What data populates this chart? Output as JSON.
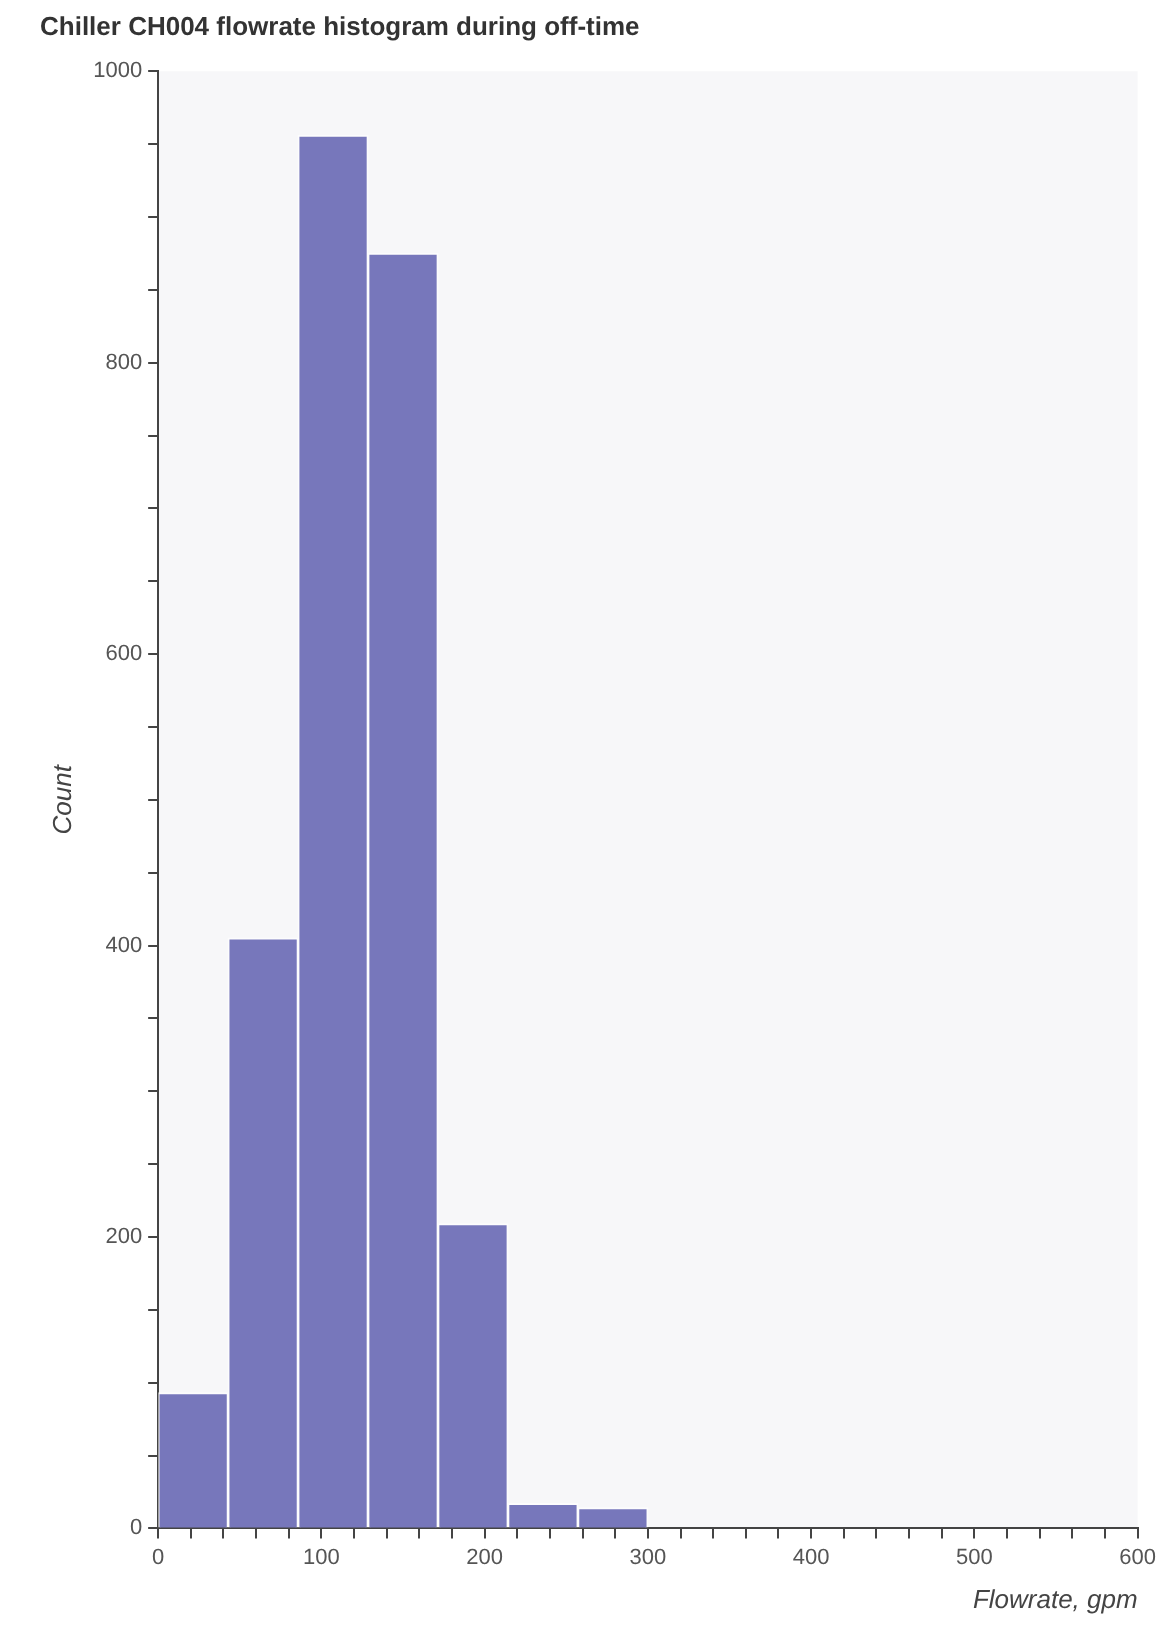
{
  "chart_data": {
    "type": "histogram",
    "title": "Chiller CH004 flowrate histogram during off-time",
    "xlabel": "Flowrate, gpm",
    "ylabel": "Count",
    "bins": [
      0,
      42.86,
      85.71,
      128.57,
      171.43,
      214.29,
      257.14,
      300
    ],
    "values": [
      93,
      405,
      956,
      875,
      209,
      17,
      14
    ],
    "color": "#7777bb",
    "xlim": [
      0,
      600
    ],
    "xticks": [
      0,
      {
        "value": 20,
        "label": null
      },
      {
        "value": 40,
        "label": null
      },
      {
        "value": 60,
        "label": null
      },
      {
        "value": 80,
        "label": null
      },
      100,
      {
        "value": 120,
        "label": null
      },
      {
        "value": 140,
        "label": null
      },
      {
        "value": 160,
        "label": null
      },
      {
        "value": 180,
        "label": null
      },
      200,
      {
        "value": 220,
        "label": null
      },
      {
        "value": 240,
        "label": null
      },
      {
        "value": 260,
        "label": null
      },
      {
        "value": 280,
        "label": null
      },
      300,
      {
        "value": 320,
        "label": null
      },
      {
        "value": 340,
        "label": null
      },
      {
        "value": 360,
        "label": null
      },
      {
        "value": 380,
        "label": null
      },
      400,
      {
        "value": 420,
        "label": null
      },
      {
        "value": 440,
        "label": null
      },
      {
        "value": 460,
        "label": null
      },
      {
        "value": 480,
        "label": null
      },
      500,
      {
        "value": 520,
        "label": null
      },
      {
        "value": 540,
        "label": null
      },
      {
        "value": 560,
        "label": null
      },
      {
        "value": 580,
        "label": null
      },
      600
    ],
    "ylim": [
      0,
      1000
    ],
    "yticks": [
      0,
      {
        "value": 50,
        "label": null
      },
      {
        "value": 100,
        "label": null
      },
      {
        "value": 150,
        "label": null
      },
      200,
      {
        "value": 250,
        "label": null
      },
      {
        "value": 300,
        "label": null
      },
      {
        "value": 350,
        "label": null
      },
      400,
      {
        "value": 450,
        "label": null
      },
      {
        "value": 500,
        "label": null
      },
      {
        "value": 550,
        "label": null
      },
      600,
      {
        "value": 650,
        "label": null
      },
      {
        "value": 700,
        "label": null
      },
      {
        "value": 750,
        "label": null
      },
      800,
      {
        "value": 850,
        "label": null
      },
      {
        "value": 900,
        "label": null
      },
      {
        "value": 950,
        "label": null
      },
      1000
    ]
  }
}
